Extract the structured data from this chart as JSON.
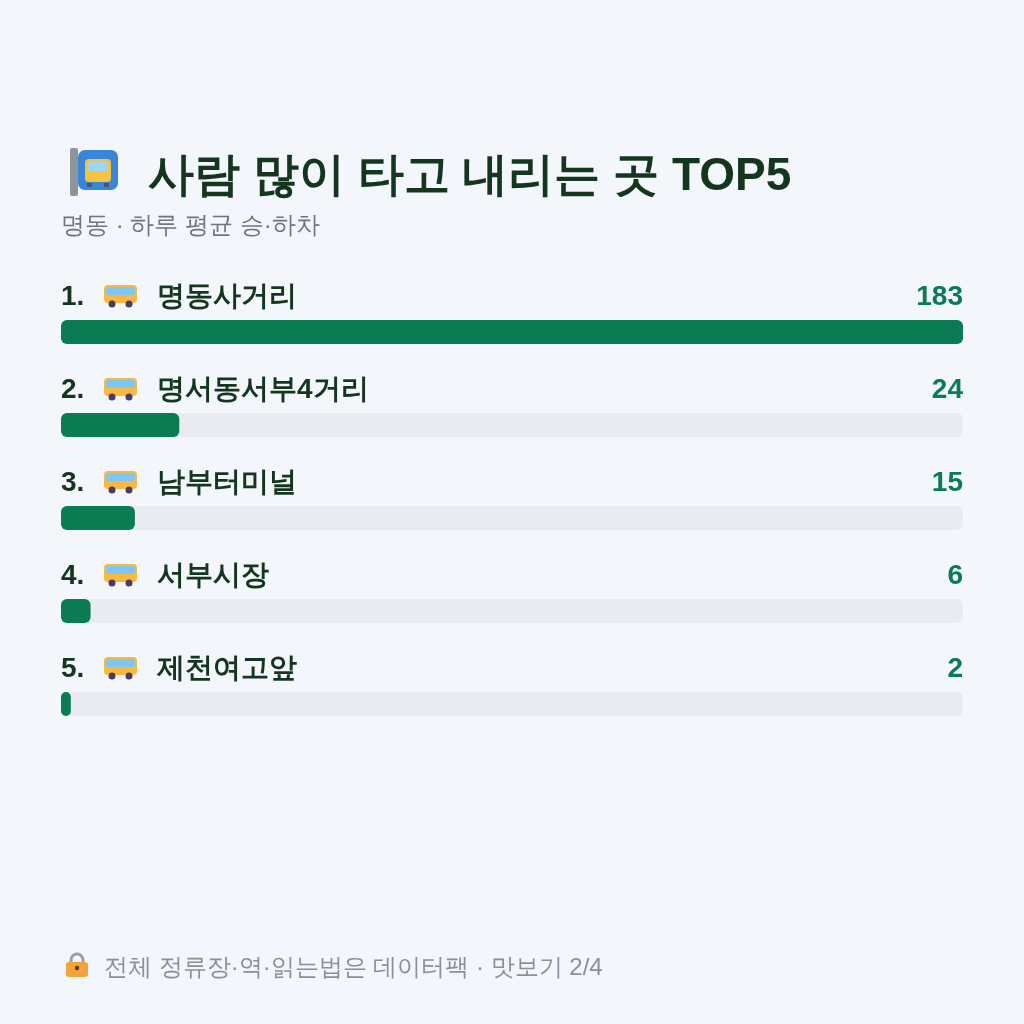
{
  "chart_data": {
    "type": "bar",
    "orientation": "horizontal",
    "title": "사람 많이 타고 내리는 곳 TOP5",
    "subtitle": "명동 · 하루 평균 승·하차",
    "categories": [
      "1. 명동사거리",
      "2. 명서동서부4거리",
      "3. 남부터미널",
      "4. 서부시장",
      "5. 제천여고앞"
    ],
    "values": [
      183,
      24,
      15,
      6,
      2
    ],
    "color": "#0b7b53",
    "data_labels": true,
    "tick_labels": "y",
    "annotations": [
      "전체 정류장·역·읽는법은 데이터팩 · 맛보기 2/4"
    ]
  }
}
